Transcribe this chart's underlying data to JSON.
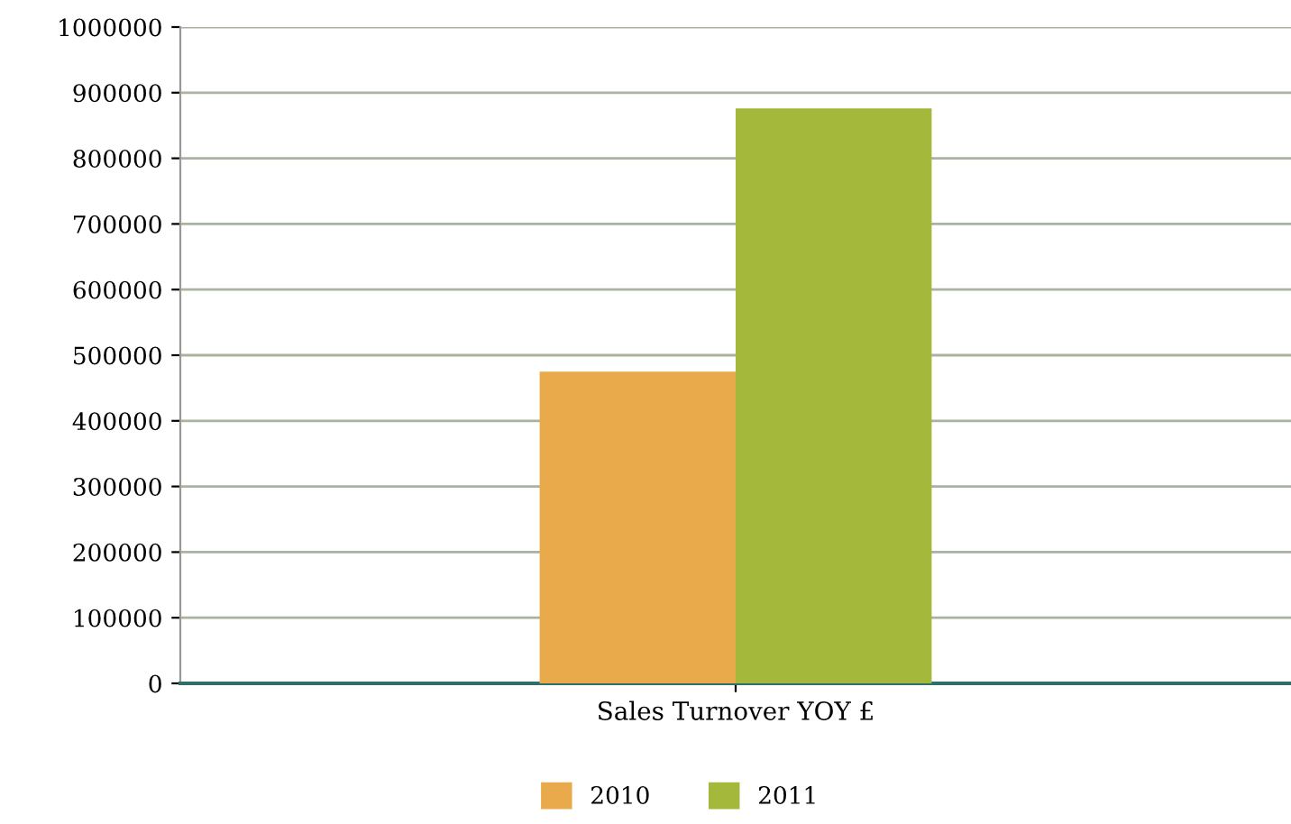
{
  "chart_data": {
    "type": "bar",
    "categories": [
      "Sales Turnover YOY £"
    ],
    "series": [
      {
        "name": "2010",
        "color": "#e9aa4c",
        "values": [
          475000
        ]
      },
      {
        "name": "2011",
        "color": "#a4b93c",
        "values": [
          876000
        ]
      }
    ],
    "ylim": [
      0,
      1000000
    ],
    "yticks": [
      0,
      100000,
      200000,
      300000,
      400000,
      500000,
      600000,
      700000,
      800000,
      900000,
      1000000
    ],
    "grid": "y",
    "legend": "bottom"
  }
}
